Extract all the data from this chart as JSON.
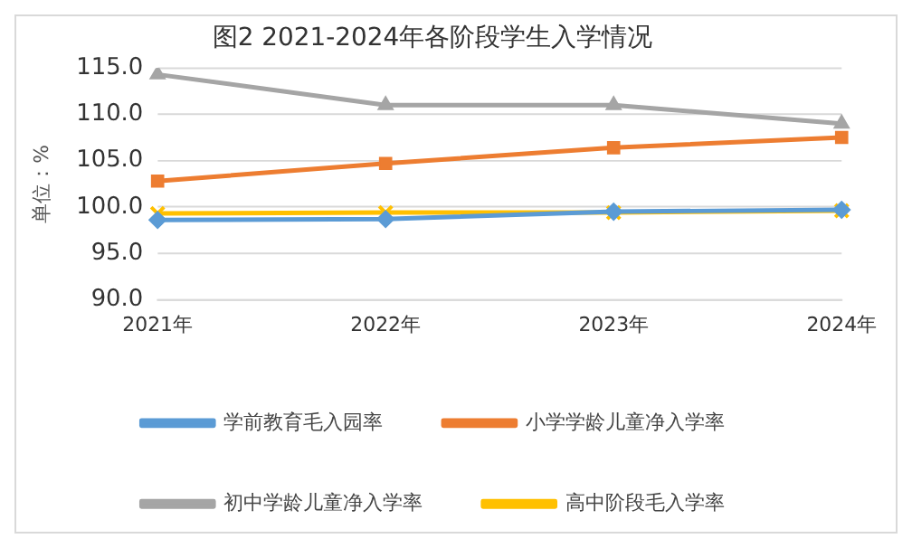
{
  "chart_data": {
    "type": "line",
    "title": "图2 2021-2024年各阶段学生入学情况",
    "ylabel": "单位：%",
    "categories": [
      "2021年",
      "2022年",
      "2023年",
      "2024年"
    ],
    "series": [
      {
        "name": "学前教育毛入园率",
        "color": "#5b9bd5",
        "marker": "diamond",
        "values": [
          98.6,
          98.7,
          99.5,
          99.7
        ]
      },
      {
        "name": "小学学龄儿童净入学率",
        "color": "#ed7d31",
        "marker": "square",
        "values": [
          102.8,
          104.7,
          106.4,
          107.5
        ]
      },
      {
        "name": "初中学龄儿童净入学率",
        "color": "#a5a5a5",
        "marker": "triangle",
        "values": [
          114.3,
          111.0,
          111.0,
          109.0
        ]
      },
      {
        "name": "高中阶段毛入学率",
        "color": "#ffc000",
        "marker": "cross",
        "values": [
          99.3,
          99.4,
          99.4,
          99.6
        ]
      }
    ],
    "ylim": [
      90,
      115
    ],
    "yticks": [
      {
        "value": 90,
        "label": "90.0"
      },
      {
        "value": 95,
        "label": "95.0"
      },
      {
        "value": 100,
        "label": "100.0"
      },
      {
        "value": 105,
        "label": "105.0"
      },
      {
        "value": 110,
        "label": "110.0"
      },
      {
        "value": 115,
        "label": "115.0"
      }
    ],
    "grid": "y",
    "legend": "bottom",
    "line_style": "solid"
  }
}
